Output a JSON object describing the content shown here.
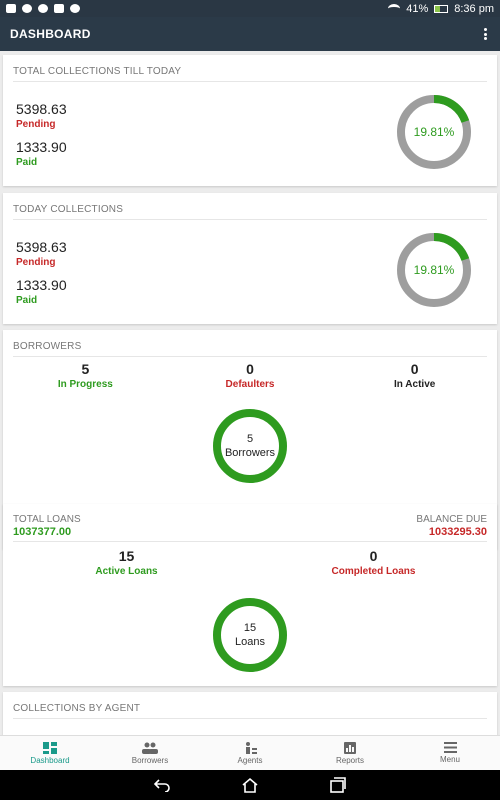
{
  "status_bar": {
    "battery": "41%",
    "time": "8:36 pm"
  },
  "app_bar": {
    "title": "DASHBOARD"
  },
  "total_collections": {
    "title": "TOTAL COLLECTIONS TILL TODAY",
    "pending_amount": "5398.63",
    "pending_label": "Pending",
    "paid_amount": "1333.90",
    "paid_label": "Paid",
    "percent_text": "19.81%",
    "percent_value": 19.81
  },
  "today_collections": {
    "title": "TODAY COLLECTIONS",
    "pending_amount": "5398.63",
    "pending_label": "Pending",
    "paid_amount": "1333.90",
    "paid_label": "Paid",
    "percent_text": "19.81%",
    "percent_value": 19.81
  },
  "borrowers": {
    "title": "BORROWERS",
    "in_progress_count": "5",
    "in_progress_label": "In Progress",
    "defaulters_count": "0",
    "defaulters_label": "Defaulters",
    "inactive_count": "0",
    "inactive_label": "In Active",
    "ring_count": "5",
    "ring_label": "Borrowers"
  },
  "loans": {
    "total_caption": "TOTAL LOANS",
    "total_value": "1037377.00",
    "balance_caption": "BALANCE DUE",
    "balance_value": "1033295.30",
    "active_count": "15",
    "active_label": "Active Loans",
    "completed_count": "0",
    "completed_label": "Completed Loans",
    "ring_count": "15",
    "ring_label": "Loans"
  },
  "agent_collections": {
    "title": "COLLECTIONS BY AGENT"
  },
  "bottom_nav": {
    "items": [
      {
        "label": "Dashboard",
        "icon": "dashboard-icon"
      },
      {
        "label": "Borrowers",
        "icon": "people-icon"
      },
      {
        "label": "Agents",
        "icon": "agent-icon"
      },
      {
        "label": "Reports",
        "icon": "chart-icon"
      },
      {
        "label": "Menu",
        "icon": "hamburger-icon"
      }
    ]
  },
  "colors": {
    "app_bar": "#2b3a48",
    "green": "#2e9b1f",
    "red": "#c62828",
    "donut_track": "#9e9e9e",
    "nav_active": "#1a9a8a"
  }
}
